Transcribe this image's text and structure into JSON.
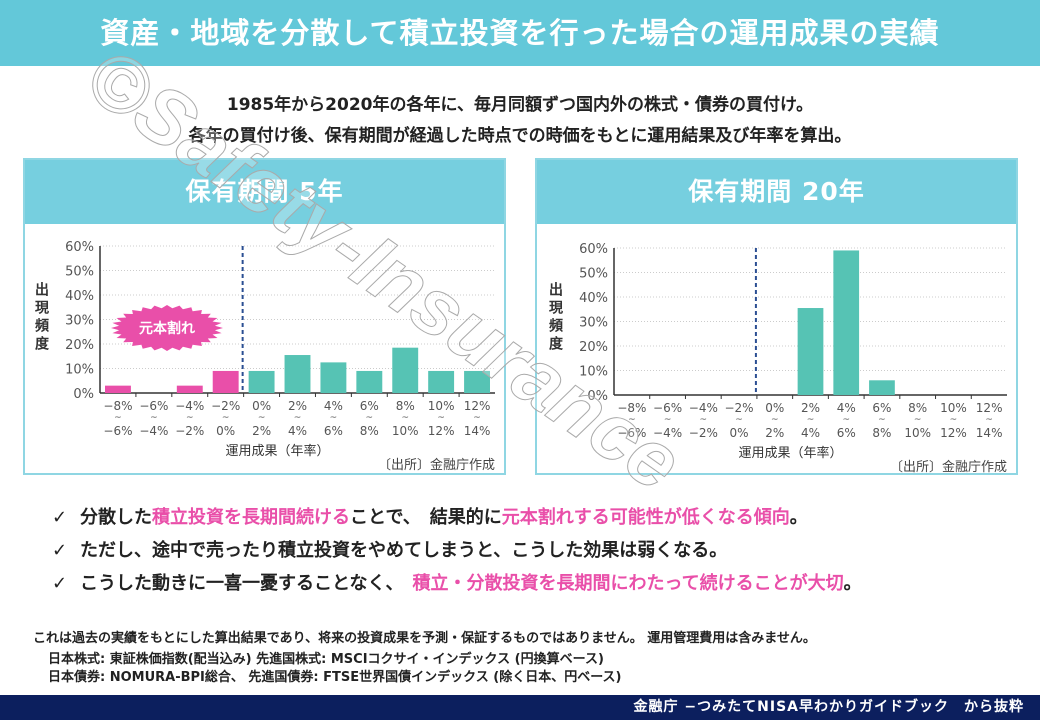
{
  "title": "資産・地域を分散して積立投資を行った場合の運用成果の実績",
  "intro": [
    "1985年から2020年の各年に、毎月同額ずつ国内外の株式・債券の買付け。",
    "各年の買付け後、保有期間が経過した時点での時価をもとに運用結果及び年率を算出。"
  ],
  "colors": {
    "header": "#63c8d9",
    "loss": "#e94fa9",
    "gain": "#56c3b4",
    "footer": "#0c1f5e"
  },
  "chart_data": [
    {
      "type": "bar",
      "title": "保有期間 5年",
      "ylabel": "出現頻度",
      "xlabel": "運用成果（年率）",
      "source": "〔出所〕金融庁作成",
      "badge": "元本割れ",
      "yticks": [
        "0%",
        "10%",
        "20%",
        "30%",
        "40%",
        "50%",
        "60%"
      ],
      "ylim": [
        0,
        60
      ],
      "categories": [
        [
          "−8%",
          "−6%"
        ],
        [
          "−6%",
          "−4%"
        ],
        [
          "−4%",
          "−2%"
        ],
        [
          "−2%",
          "0%"
        ],
        [
          "0%",
          "2%"
        ],
        [
          "2%",
          "4%"
        ],
        [
          "4%",
          "6%"
        ],
        [
          "6%",
          "8%"
        ],
        [
          "8%",
          "10%"
        ],
        [
          "10%",
          "12%"
        ],
        [
          "12%",
          "14%"
        ]
      ],
      "values": [
        3,
        0,
        3,
        9,
        9,
        15.5,
        12.5,
        9,
        18.5,
        9,
        9
      ]
    },
    {
      "type": "bar",
      "title": "保有期間 20年",
      "ylabel": "出現頻度",
      "xlabel": "運用成果（年率）",
      "source": "〔出所〕金融庁作成",
      "yticks": [
        "0%",
        "10%",
        "20%",
        "30%",
        "40%",
        "50%",
        "60%"
      ],
      "ylim": [
        0,
        60
      ],
      "categories": [
        [
          "−8%",
          "−6%"
        ],
        [
          "−6%",
          "−4%"
        ],
        [
          "−4%",
          "−2%"
        ],
        [
          "−2%",
          "0%"
        ],
        [
          "0%",
          "2%"
        ],
        [
          "2%",
          "4%"
        ],
        [
          "4%",
          "6%"
        ],
        [
          "6%",
          "8%"
        ],
        [
          "8%",
          "10%"
        ],
        [
          "10%",
          "12%"
        ],
        [
          "12%",
          "14%"
        ]
      ],
      "values": [
        0,
        0,
        0,
        0,
        0,
        35.5,
        59,
        6,
        0,
        0,
        0
      ]
    }
  ],
  "bullets": [
    [
      {
        "t": "分散した"
      },
      {
        "t": "積立投資を長期間続ける",
        "p": true
      },
      {
        "t": "ことで、　結果的に"
      },
      {
        "t": "元本割れする可能性が低くなる傾向",
        "p": true
      },
      {
        "t": "。"
      }
    ],
    [
      {
        "t": "ただし、途中で売ったり積立投資をやめてしまうと、こうした効果は弱くなる。"
      }
    ],
    [
      {
        "t": "こうした動きに一喜一憂することなく、　"
      },
      {
        "t": "積立・分散投資を長期間にわたって続けることが大切",
        "p": true
      },
      {
        "t": "。"
      }
    ]
  ],
  "check": "✓",
  "notes": [
    "これは過去の実績をもとにした算出結果であり、将来の投資成果を予測・保証するものではありません。 運用管理費用は含みません。",
    "日本株式: 東証株価指数(配当込み) 先進国株式: MSCIコクサイ・インデックス (円換算ベース)",
    "日本債券: NOMURA-BPI総合、 先進国債券: FTSE世界国債インデックス (除く日本、円ベース)"
  ],
  "footer": "金融庁 −つみたてNISA早わかりガイドブック　から抜粋",
  "watermark": "©Safety-Insurance"
}
